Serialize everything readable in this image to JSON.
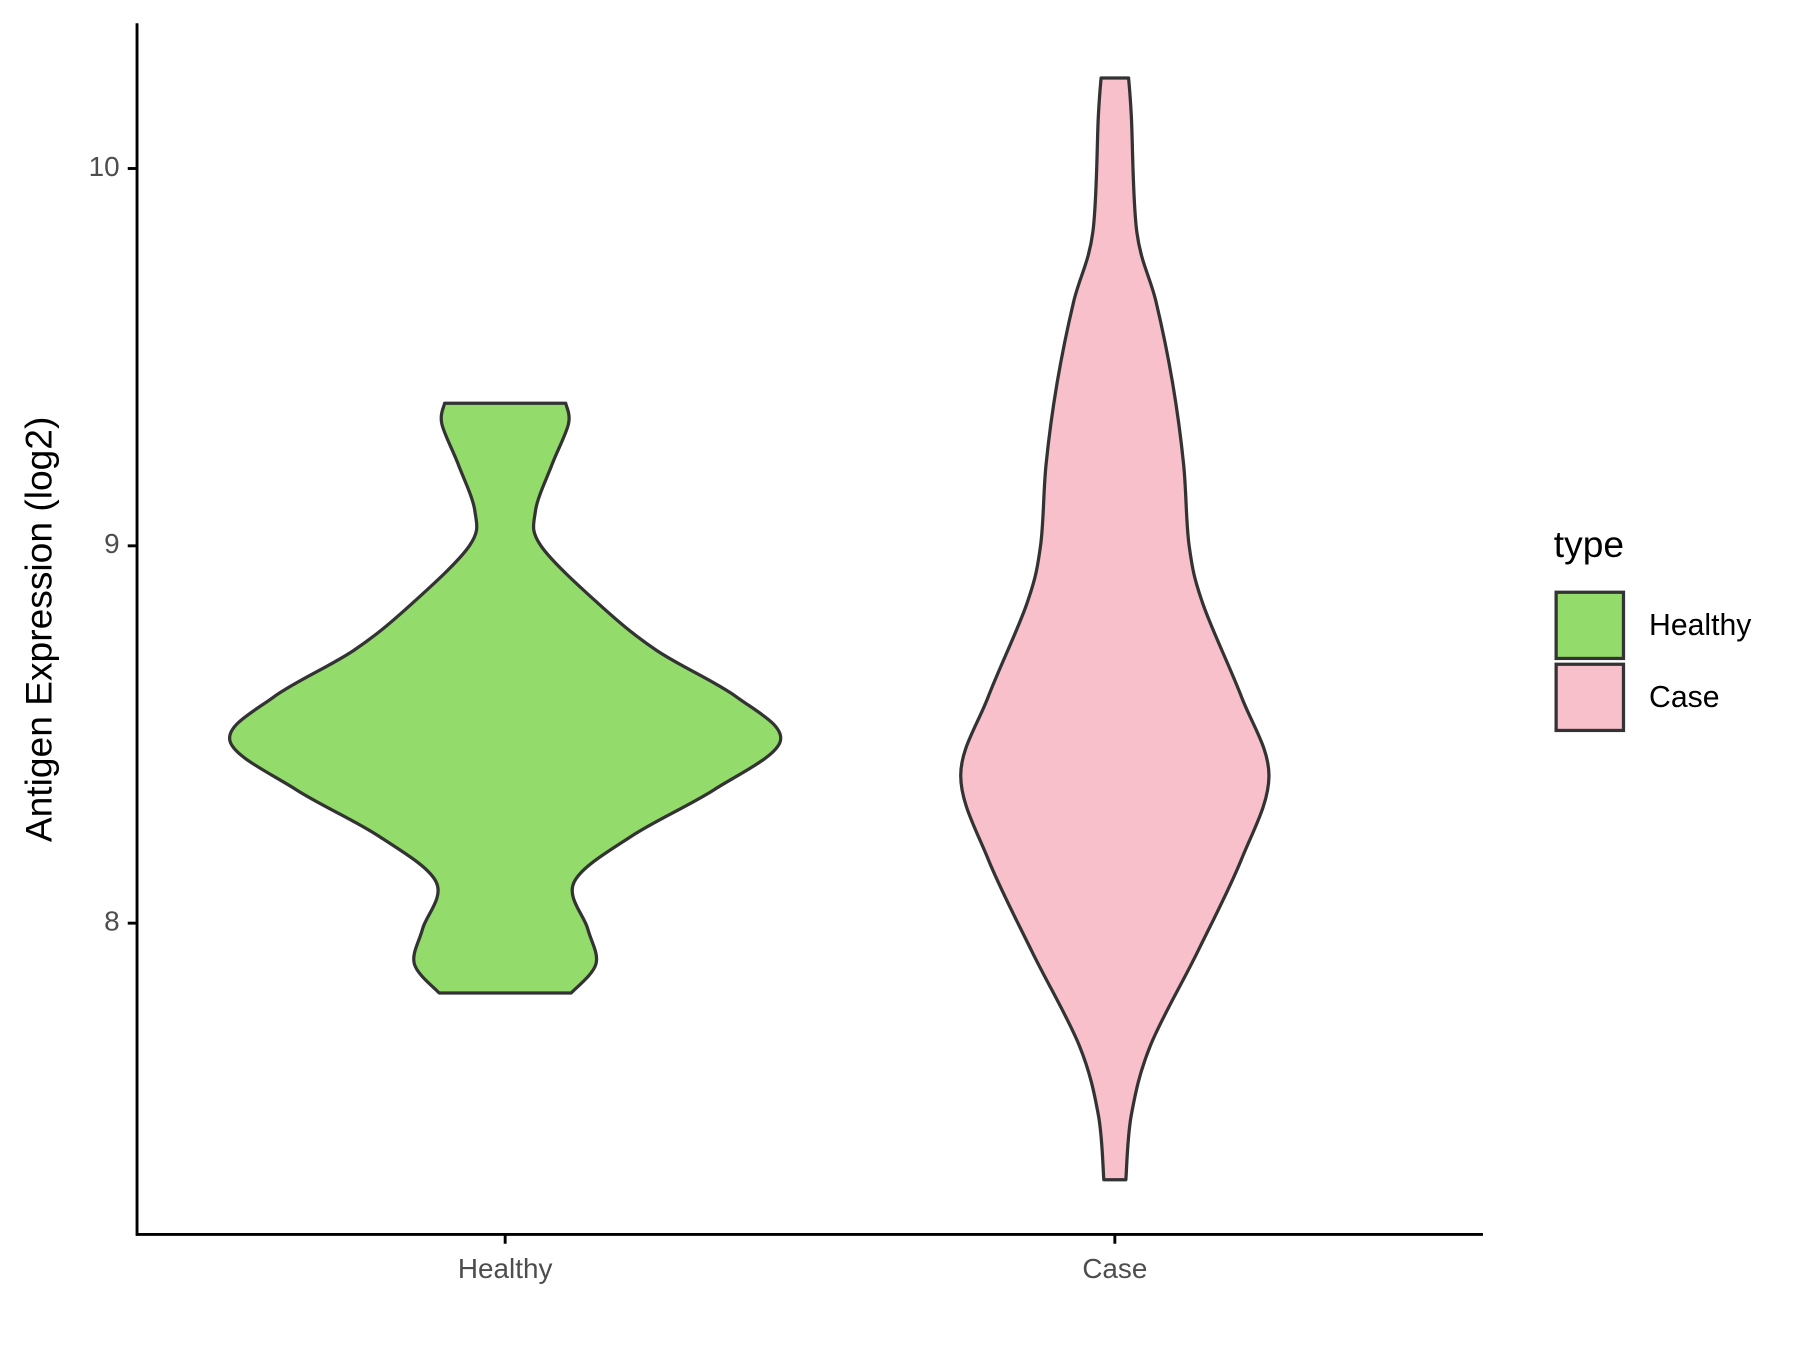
{
  "chart_data": {
    "type": "violin",
    "y_label": "Antigen Expression (log2)",
    "categories": [
      "Healthy",
      "Case"
    ],
    "legend_title": "type",
    "ylim": [
      7.175,
      10.385
    ],
    "yticks": [
      8,
      9,
      10
    ],
    "series": [
      {
        "name": "Healthy",
        "color": "#93dc6b",
        "y": [
          9.378,
          9.323,
          9.215,
          9.092,
          9.0,
          8.846,
          8.723,
          8.6,
          8.483,
          8.354,
          8.231,
          8.108,
          7.985,
          7.892,
          7.815
        ],
        "density": [
          0.22,
          0.23,
          0.17,
          0.11,
          0.13,
          0.34,
          0.55,
          0.84,
          1.0,
          0.76,
          0.46,
          0.25,
          0.3,
          0.33,
          0.24
        ]
      },
      {
        "name": "Case",
        "color": "#f7c0cb",
        "y": [
          10.24,
          10.138,
          9.831,
          9.646,
          9.431,
          9.215,
          9.0,
          8.846,
          8.6,
          8.391,
          8.169,
          7.923,
          7.677,
          7.492,
          7.32
        ],
        "density": [
          0.05,
          0.06,
          0.08,
          0.15,
          0.21,
          0.25,
          0.27,
          0.32,
          0.46,
          0.56,
          0.46,
          0.3,
          0.13,
          0.06,
          0.04
        ]
      }
    ]
  }
}
